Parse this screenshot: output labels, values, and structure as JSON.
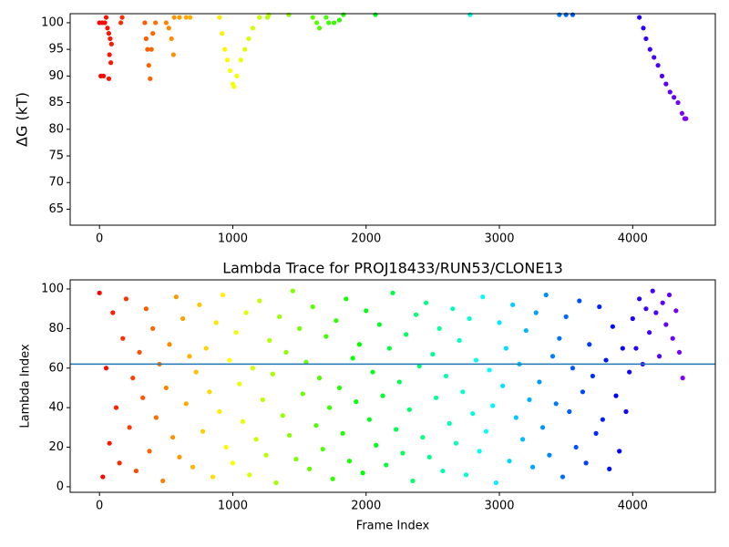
{
  "chart_data": [
    {
      "type": "scatter",
      "ylabel": "ΔG (kT)",
      "colormap": "rainbow_r",
      "xlim": [
        -220,
        4620
      ],
      "xticks": [
        0,
        1000,
        2000,
        3000,
        4000
      ],
      "ylim": [
        62,
        101.7
      ],
      "yticks": [
        65,
        70,
        75,
        80,
        85,
        90,
        95,
        100
      ],
      "x": [
        0,
        20,
        40,
        10,
        30,
        50,
        60,
        70,
        80,
        90,
        75,
        85,
        70,
        160,
        170,
        340,
        350,
        360,
        370,
        380,
        390,
        400,
        420,
        500,
        520,
        540,
        555,
        560,
        600,
        650,
        680,
        900,
        920,
        940,
        960,
        980,
        1000,
        1010,
        1030,
        1060,
        1090,
        1120,
        1150,
        1200,
        1260,
        1270,
        1420,
        1600,
        1630,
        1650,
        1700,
        1720,
        1760,
        1800,
        1830,
        2070,
        2780,
        3450,
        3500,
        3550,
        4050,
        4080,
        4100,
        4130,
        4160,
        4190,
        4220,
        4250,
        4280,
        4310,
        4340,
        4370,
        4390,
        4400
      ],
      "values": [
        100,
        100,
        100,
        90,
        90,
        101,
        99,
        98,
        97,
        96,
        94,
        92.5,
        89.5,
        100,
        101,
        100,
        97,
        95,
        92,
        89.5,
        95,
        98,
        100,
        100,
        99,
        97,
        94,
        101,
        101,
        101,
        101,
        101,
        98,
        95,
        93,
        91,
        88.5,
        88,
        90,
        93,
        95,
        97,
        99,
        101,
        101,
        101.5,
        101.5,
        101,
        100,
        99,
        101,
        100,
        100,
        100.5,
        101.5,
        101.5,
        101.5,
        101.5,
        101.5,
        101.5,
        101,
        99,
        97,
        95,
        93.5,
        92,
        90,
        88.5,
        87,
        86,
        85,
        83,
        82,
        82
      ]
    },
    {
      "type": "scatter",
      "title": "Lambda Trace for PROJ18433/RUN53/CLONE13",
      "xlabel": "Frame Index",
      "ylabel": "Lambda Index",
      "colormap": "rainbow_r",
      "hline": 62,
      "hline_color": "#1f77b4",
      "xlim": [
        -220,
        4620
      ],
      "xticks": [
        0,
        1000,
        2000,
        3000,
        4000
      ],
      "ylim": [
        -2.8,
        104.6
      ],
      "yticks": [
        0,
        20,
        40,
        60,
        80,
        100
      ],
      "x": [
        0,
        25,
        50,
        75,
        100,
        125,
        150,
        175,
        200,
        225,
        250,
        275,
        300,
        325,
        350,
        375,
        400,
        425,
        450,
        475,
        500,
        525,
        550,
        575,
        600,
        625,
        650,
        675,
        700,
        725,
        750,
        775,
        800,
        825,
        850,
        875,
        900,
        925,
        950,
        975,
        1000,
        1025,
        1050,
        1075,
        1100,
        1125,
        1150,
        1175,
        1200,
        1225,
        1250,
        1275,
        1300,
        1325,
        1350,
        1375,
        1400,
        1425,
        1450,
        1475,
        1500,
        1525,
        1550,
        1575,
        1600,
        1625,
        1650,
        1675,
        1700,
        1725,
        1750,
        1775,
        1800,
        1825,
        1850,
        1875,
        1900,
        1925,
        1950,
        1975,
        2000,
        2025,
        2050,
        2075,
        2100,
        2125,
        2150,
        2175,
        2200,
        2225,
        2250,
        2275,
        2300,
        2325,
        2350,
        2375,
        2400,
        2425,
        2450,
        2475,
        2500,
        2525,
        2550,
        2575,
        2600,
        2625,
        2650,
        2675,
        2700,
        2725,
        2750,
        2775,
        2800,
        2825,
        2850,
        2875,
        2900,
        2925,
        2950,
        2975,
        3000,
        3025,
        3050,
        3075,
        3100,
        3125,
        3150,
        3175,
        3200,
        3225,
        3250,
        3275,
        3300,
        3325,
        3350,
        3375,
        3400,
        3425,
        3450,
        3475,
        3500,
        3525,
        3550,
        3575,
        3600,
        3625,
        3650,
        3675,
        3700,
        3725,
        3750,
        3775,
        3800,
        3825,
        3850,
        3875,
        3900,
        3925,
        3950,
        3975,
        4000,
        4025,
        4050,
        4075,
        4100,
        4125,
        4150,
        4175,
        4200,
        4225,
        4250,
        4275,
        4300,
        4325,
        4350,
        4375
      ],
      "values": [
        98,
        5,
        60,
        22,
        88,
        40,
        12,
        75,
        95,
        30,
        55,
        8,
        68,
        45,
        90,
        18,
        80,
        35,
        62,
        3,
        50,
        72,
        25,
        96,
        15,
        85,
        42,
        66,
        10,
        58,
        92,
        28,
        70,
        48,
        5,
        83,
        38,
        97,
        20,
        64,
        12,
        78,
        52,
        33,
        88,
        6,
        60,
        24,
        94,
        44,
        16,
        74,
        57,
        2,
        86,
        36,
        68,
        26,
        99,
        14,
        80,
        47,
        63,
        9,
        91,
        31,
        55,
        19,
        76,
        40,
        4,
        84,
        50,
        27,
        95,
        13,
        65,
        43,
        72,
        7,
        89,
        34,
        58,
        21,
        82,
        46,
        11,
        70,
        98,
        29,
        53,
        17,
        77,
        39,
        3,
        87,
        61,
        25,
        93,
        15,
        67,
        45,
        80,
        8,
        56,
        32,
        90,
        22,
        74,
        48,
        6,
        85,
        37,
        64,
        18,
        96,
        28,
        59,
        41,
        2,
        83,
        51,
        70,
        13,
        92,
        35,
        62,
        24,
        79,
        44,
        10,
        88,
        53,
        30,
        97,
        16,
        66,
        42,
        75,
        5,
        86,
        38,
        60,
        20,
        94,
        48,
        12,
        72,
        56,
        27,
        91,
        34,
        64,
        9,
        81,
        46,
        18,
        70,
        38,
        58,
        85,
        70,
        95,
        62,
        90,
        78,
        99,
        88,
        66,
        93,
        82,
        97,
        75,
        89,
        68,
        55
      ]
    }
  ]
}
